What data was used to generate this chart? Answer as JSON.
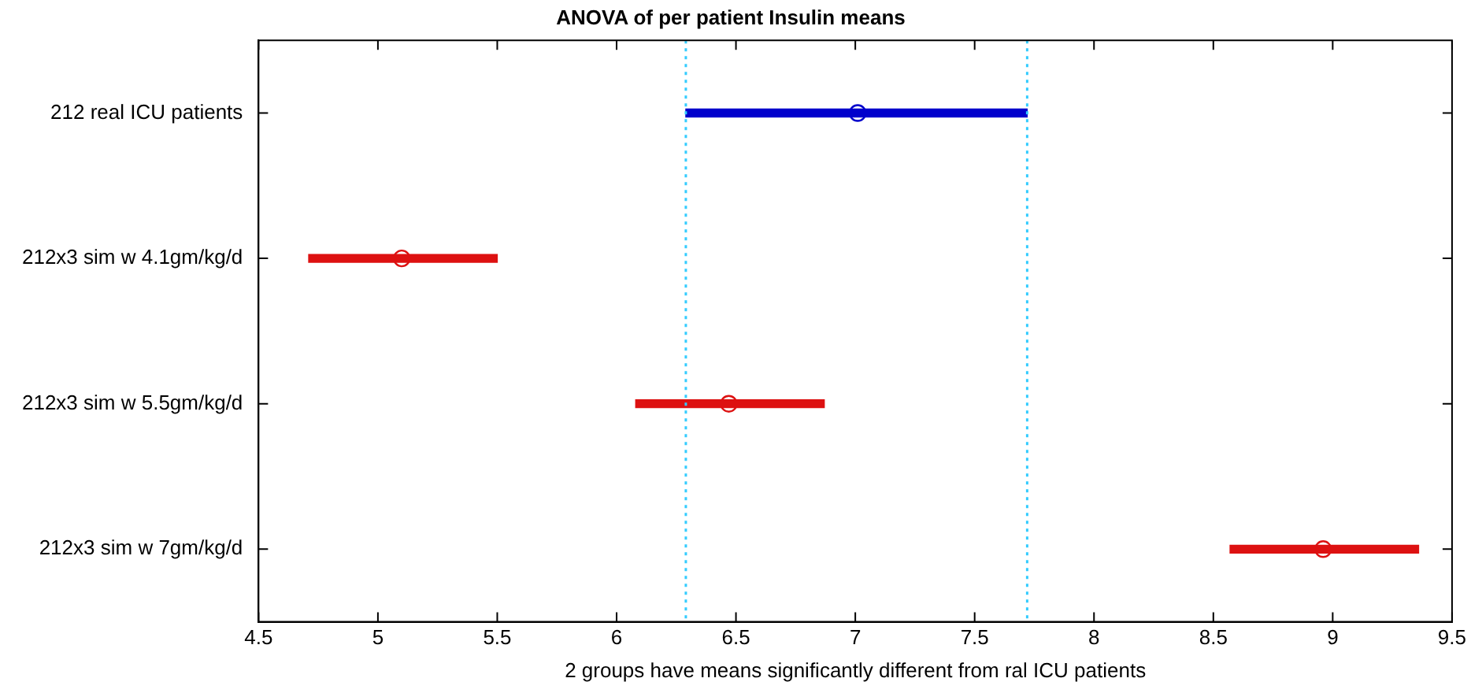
{
  "chart_data": {
    "type": "bar",
    "orientation": "horizontal",
    "title": "ANOVA of per patient Insulin means",
    "xlabel": "2 groups have means significantly different from ral ICU patients",
    "categories": [
      "212 real ICU patients",
      "212x3 sim w 4.1gm/kg/d",
      "212x3 sim w 5.5gm/kg/d",
      "212x3 sim w 7gm/kg/d"
    ],
    "series": [
      {
        "colors": [
          "#0000cc",
          "#dd1111",
          "#dd1111",
          "#dd1111"
        ],
        "base": [
          6.29,
          4.71,
          6.08,
          8.57
        ],
        "values": [
          1.43,
          0.79,
          0.79,
          0.79
        ]
      },
      {
        "type": "scatter",
        "marker": "circle",
        "colors": [
          "#0000cc",
          "#dd1111",
          "#dd1111",
          "#dd1111"
        ],
        "x": [
          "212 real ICU patients",
          "212x3 sim w 4.1gm/kg/d",
          "212x3 sim w 5.5gm/kg/d",
          "212x3 sim w 7gm/kg/d"
        ],
        "values": [
          7.01,
          5.1,
          6.47,
          8.96
        ]
      }
    ],
    "xlim": [
      4.5,
      9.5
    ],
    "xticks": [
      4.5,
      5,
      5.5,
      6,
      6.5,
      7,
      7.5,
      8,
      8.5,
      9,
      9.5
    ],
    "ref_lines": [
      {
        "axis": "x",
        "value": 6.29,
        "color": "#33ccff",
        "line_style": "dotted"
      },
      {
        "axis": "x",
        "value": 7.72,
        "color": "#33ccff",
        "line_style": "dotted"
      }
    ],
    "grid": false,
    "legend": false
  }
}
